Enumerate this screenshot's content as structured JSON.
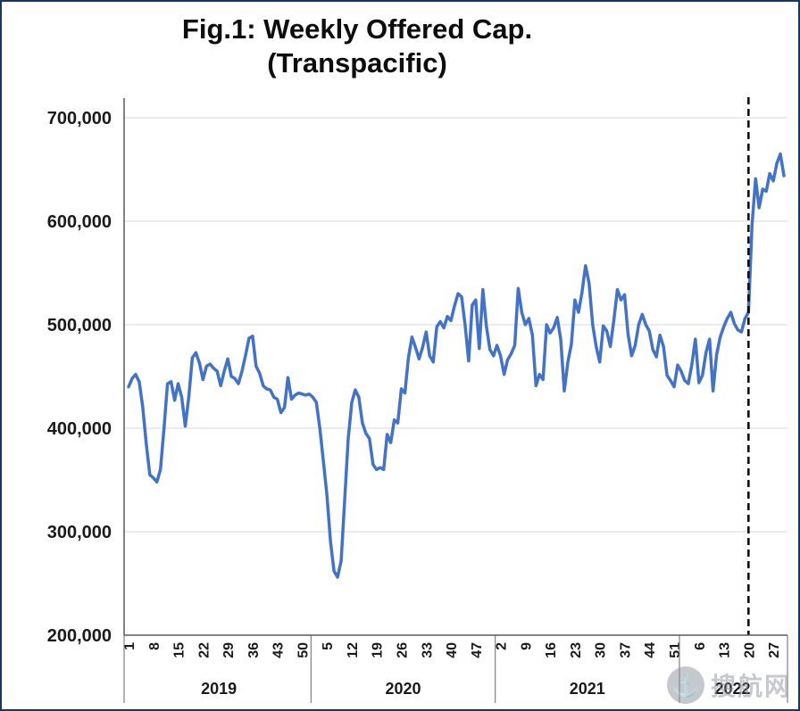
{
  "chart_data": {
    "type": "line",
    "title": "Fig.1: Weekly Offered Cap.",
    "subtitle": "(Transpacific)",
    "xlabel": "",
    "ylabel": "",
    "ylim": [
      200000,
      700000
    ],
    "grid": "horizontal",
    "legend": "none",
    "y_ticks": [
      200000,
      300000,
      400000,
      500000,
      600000,
      700000
    ],
    "y_tick_labels": [
      "200,000",
      "300,000",
      "400,000",
      "500,000",
      "600,000",
      "700,000"
    ],
    "x_tick_indices": [
      0,
      7,
      14,
      21,
      28,
      35,
      42,
      49,
      56,
      63,
      70,
      77,
      84,
      91,
      98,
      105,
      112,
      119,
      126,
      133,
      140,
      147,
      154,
      161,
      168,
      175,
      182
    ],
    "x_tick_labels": [
      "1",
      "8",
      "15",
      "22",
      "29",
      "36",
      "43",
      "50",
      "5",
      "12",
      "19",
      "26",
      "33",
      "40",
      "47",
      "2",
      "9",
      "16",
      "23",
      "30",
      "37",
      "44",
      "51",
      "6",
      "13",
      "20",
      "27"
    ],
    "year_groups": [
      {
        "label": "2019",
        "start": 0,
        "end": 51
      },
      {
        "label": "2020",
        "start": 52,
        "end": 103
      },
      {
        "label": "2021",
        "start": 104,
        "end": 155
      },
      {
        "label": "2022",
        "start": 156,
        "end": 185
      }
    ],
    "series": [
      {
        "name": "Weekly Offered Cap. (Transpacific)",
        "color": "#4472C4",
        "values": [
          440000,
          448000,
          452000,
          445000,
          420000,
          385000,
          355000,
          352000,
          348000,
          360000,
          400000,
          443000,
          445000,
          427000,
          443000,
          430000,
          402000,
          430000,
          468000,
          473000,
          463000,
          447000,
          460000,
          462000,
          458000,
          455000,
          441000,
          455000,
          467000,
          450000,
          448000,
          443000,
          455000,
          470000,
          487000,
          489000,
          460000,
          453000,
          441000,
          438000,
          437000,
          430000,
          428000,
          415000,
          420000,
          449000,
          428000,
          432000,
          434000,
          433000,
          432000,
          433000,
          430000,
          425000,
          400000,
          368000,
          335000,
          290000,
          262000,
          256000,
          272000,
          330000,
          390000,
          425000,
          437000,
          430000,
          405000,
          395000,
          390000,
          365000,
          360000,
          362000,
          360000,
          394000,
          386000,
          408000,
          405000,
          438000,
          434000,
          468000,
          488000,
          478000,
          467000,
          478000,
          493000,
          470000,
          464000,
          498000,
          503000,
          497000,
          508000,
          504000,
          518000,
          530000,
          527000,
          500000,
          465000,
          519000,
          524000,
          477000,
          534000,
          499000,
          476000,
          470000,
          480000,
          470000,
          452000,
          466000,
          472000,
          480000,
          535000,
          512000,
          500000,
          506000,
          490000,
          441000,
          452000,
          447000,
          500000,
          492000,
          497000,
          507000,
          486000,
          436000,
          464000,
          481000,
          524000,
          512000,
          531000,
          557000,
          540000,
          500000,
          479000,
          464000,
          499000,
          494000,
          479000,
          505000,
          534000,
          524000,
          529000,
          491000,
          470000,
          480000,
          500000,
          510000,
          500000,
          494000,
          476000,
          469000,
          490000,
          479000,
          451000,
          446000,
          440000,
          461000,
          455000,
          446000,
          443000,
          461000,
          486000,
          444000,
          451000,
          473000,
          486000,
          436000,
          471000,
          488000,
          498000,
          506000,
          512000,
          501000,
          495000,
          493000,
          506000,
          512000,
          597000,
          641000,
          613000,
          631000,
          629000,
          646000,
          639000,
          656000,
          665000,
          644000
        ]
      }
    ],
    "annotation": {
      "type": "dashed-vertical-line",
      "week_index": 175,
      "color": "#000000"
    }
  },
  "watermark": {
    "text": "搜航网",
    "icon": "anchor-logo"
  }
}
